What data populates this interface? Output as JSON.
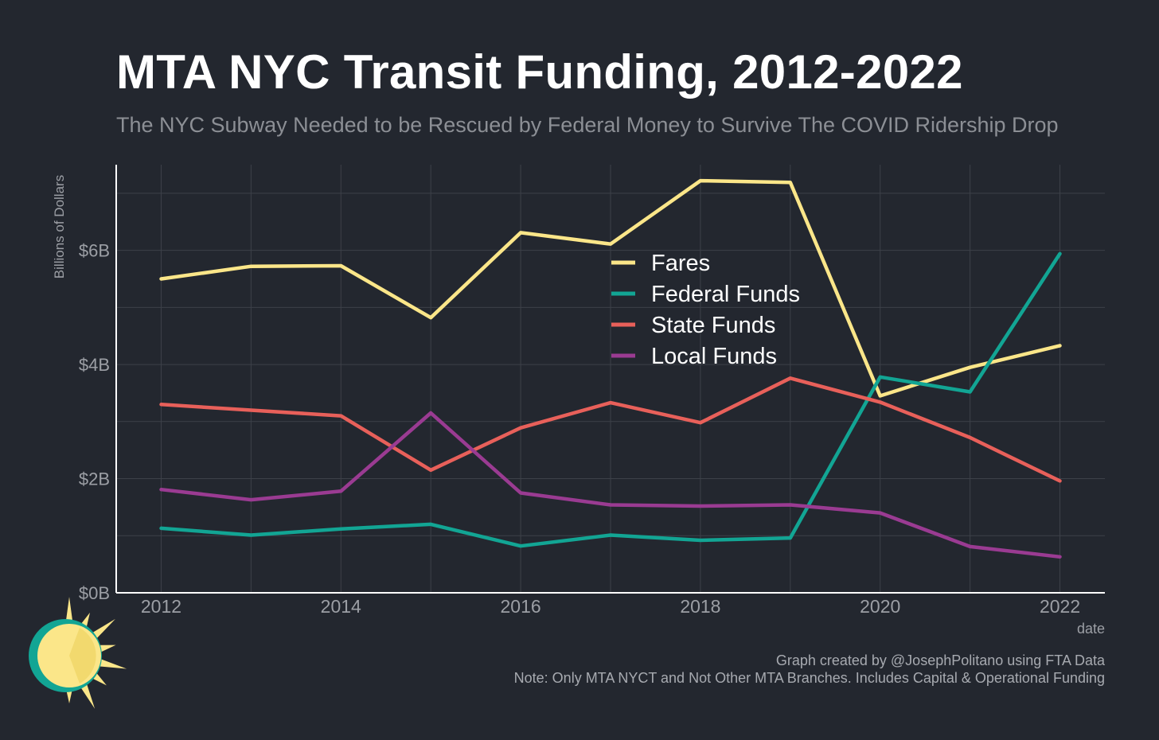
{
  "header": {
    "title": "MTA NYC Transit Funding, 2012-2022",
    "subtitle": "The NYC Subway Needed to be Rescued by Federal Money to Survive The COVID Ridership Drop"
  },
  "footer": {
    "credit": "Graph created by @JosephPolitano using FTA Data",
    "note": "Note: Only MTA NYCT and Not Other MTA Branches. Includes Capital & Operational Funding"
  },
  "colors": {
    "background": "#23272f",
    "grid": "#3d4149",
    "axis": "#ffffff",
    "tick_text": "#9c9fa5",
    "legend_text": "#ffffff"
  },
  "chart_data": {
    "type": "line",
    "xlabel": "date",
    "ylabel": "Billions of Dollars",
    "xlim": [
      2011.5,
      2022.5
    ],
    "ylim": [
      0,
      7.5
    ],
    "x": [
      2012,
      2013,
      2014,
      2015,
      2016,
      2017,
      2018,
      2019,
      2020,
      2021,
      2022
    ],
    "x_ticks": [
      {
        "value": 2012,
        "label": "2012"
      },
      {
        "value": 2014,
        "label": "2014"
      },
      {
        "value": 2016,
        "label": "2016"
      },
      {
        "value": 2018,
        "label": "2018"
      },
      {
        "value": 2020,
        "label": "2020"
      },
      {
        "value": 2022,
        "label": "2022"
      }
    ],
    "y_ticks": [
      {
        "value": 0,
        "label": "$0B"
      },
      {
        "value": 2,
        "label": "$2B"
      },
      {
        "value": 4,
        "label": "$4B"
      },
      {
        "value": 6,
        "label": "$6B"
      }
    ],
    "grid": true,
    "legend_position": "top-center",
    "series": [
      {
        "name": "Fares",
        "color": "#fbe689",
        "values": [
          5.5,
          5.72,
          5.73,
          4.82,
          6.31,
          6.11,
          7.22,
          7.19,
          3.45,
          3.95,
          4.33
        ]
      },
      {
        "name": "Federal Funds",
        "color": "#12a594",
        "values": [
          1.13,
          1.01,
          1.12,
          1.2,
          0.82,
          1.01,
          0.92,
          0.96,
          3.78,
          3.52,
          5.94
        ]
      },
      {
        "name": "State Funds",
        "color": "#e8605a",
        "values": [
          3.3,
          3.2,
          3.1,
          2.15,
          2.89,
          3.33,
          2.98,
          3.76,
          3.34,
          2.72,
          1.96
        ]
      },
      {
        "name": "Local Funds",
        "color": "#9a3b92",
        "values": [
          1.81,
          1.63,
          1.78,
          3.15,
          1.75,
          1.54,
          1.52,
          1.54,
          1.4,
          0.81,
          0.63
        ]
      }
    ]
  },
  "logo": {
    "icon": "sun-icon",
    "sun_color": "#fbe689",
    "ring_color": "#12a594"
  }
}
